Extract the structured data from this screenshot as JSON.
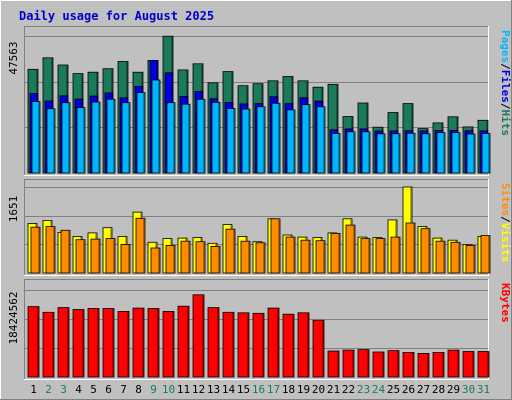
{
  "chart_data": {
    "type": "bar",
    "title": "Daily usage for August 2025",
    "categories": [
      "1",
      "2",
      "3",
      "4",
      "5",
      "6",
      "7",
      "8",
      "9",
      "10",
      "11",
      "12",
      "13",
      "14",
      "15",
      "16",
      "17",
      "18",
      "19",
      "20",
      "21",
      "22",
      "23",
      "24",
      "25",
      "26",
      "27",
      "28",
      "29",
      "30",
      "31"
    ],
    "weekend_days": [
      2,
      3,
      9,
      10,
      16,
      17,
      23,
      24,
      30,
      31
    ],
    "colors": {
      "hits": "#1b7a5a",
      "files": "#0000e0",
      "pages": "#00b7ff",
      "visits": "#ffff00",
      "sites": "#ff8c00",
      "kbytes": "#ff0000",
      "title": "#0000cc",
      "weekday_label": "#000000",
      "weekend_label": "#1b7a5a"
    },
    "panels": [
      {
        "id": "top",
        "max_label": "47563",
        "ymax": 47563,
        "legend": [
          {
            "text": "Pages",
            "color": "#00b7ff"
          },
          {
            "text": "/",
            "color": "#000000"
          },
          {
            "text": "Files",
            "color": "#0000e0"
          },
          {
            "text": "/",
            "color": "#000000"
          },
          {
            "text": "Hits",
            "color": "#1b7a5a"
          }
        ],
        "series": [
          {
            "name": "Hits",
            "key": "hits",
            "values": [
              36000,
              40000,
              37500,
              34500,
              35000,
              36200,
              38700,
              35000,
              39100,
              47500,
              35800,
              37900,
              31300,
              35200,
              30300,
              31000,
              32000,
              33500,
              32000,
              29800,
              30800,
              19600,
              24300,
              15900,
              21000,
              24100,
              15400,
              17400,
              19500,
              16000,
              18300
            ]
          },
          {
            "name": "Files",
            "key": "files",
            "values": [
              27600,
              25000,
              26800,
              25700,
              26700,
              27800,
              26100,
              30100,
              39100,
              34800,
              26600,
              28300,
              25800,
              24500,
              24000,
              24100,
              26500,
              24100,
              26100,
              25000,
              15000,
              15300,
              15300,
              14600,
              14600,
              14700,
              14600,
              14800,
              14800,
              14700,
              14600
            ]
          },
          {
            "name": "Pages",
            "key": "pages",
            "values": [
              24800,
              22300,
              24400,
              22700,
              24600,
              25600,
              24400,
              27900,
              32300,
              24400,
              23900,
              25600,
              24500,
              22400,
              22200,
              23000,
              24200,
              21900,
              23700,
              23000,
              13700,
              14300,
              14300,
              13600,
              13600,
              13800,
              13600,
              14000,
              14000,
              13500,
              13700
            ]
          }
        ]
      },
      {
        "id": "middle",
        "max_label": "1651",
        "ymax": 1651,
        "legend": [
          {
            "text": "Sites",
            "color": "#ff8c00"
          },
          {
            "text": "/",
            "color": "#000000"
          },
          {
            "text": "Visits",
            "color": "#ffff00"
          }
        ],
        "series": [
          {
            "name": "Visits",
            "key": "visits",
            "values": [
              950,
              1010,
              780,
              700,
              770,
              870,
              700,
              1170,
              590,
              660,
              670,
              680,
              570,
              930,
              700,
              600,
              1040,
              730,
              690,
              680,
              770,
              1040,
              690,
              680,
              1020,
              1651,
              890,
              670,
              630,
              550,
              700
            ]
          },
          {
            "name": "Sites",
            "key": "sites",
            "values": [
              880,
              890,
              820,
              640,
              650,
              660,
              550,
              1050,
              480,
              530,
              610,
              600,
              510,
              840,
              610,
              580,
              1040,
              690,
              630,
              620,
              760,
              920,
              660,
              660,
              690,
              960,
              850,
              610,
              590,
              530,
              720
            ]
          }
        ]
      },
      {
        "id": "bottom",
        "max_label": "18424562",
        "ymax": 18424562,
        "legend": [
          {
            "text": "KBytes",
            "color": "#ff0000"
          }
        ],
        "series": [
          {
            "name": "KBytes",
            "key": "kbytes",
            "values": [
              14900000,
              13700000,
              14700000,
              14300000,
              14500000,
              14500000,
              13900000,
              14600000,
              14500000,
              13900000,
              15000000,
              17400000,
              14700000,
              13700000,
              13600000,
              13500000,
              14600000,
              13300000,
              13600000,
              12000000,
              5500000,
              5700000,
              5800000,
              5300000,
              5600000,
              5200000,
              5000000,
              5200000,
              5700000,
              5400000,
              5400000
            ]
          }
        ]
      }
    ]
  }
}
